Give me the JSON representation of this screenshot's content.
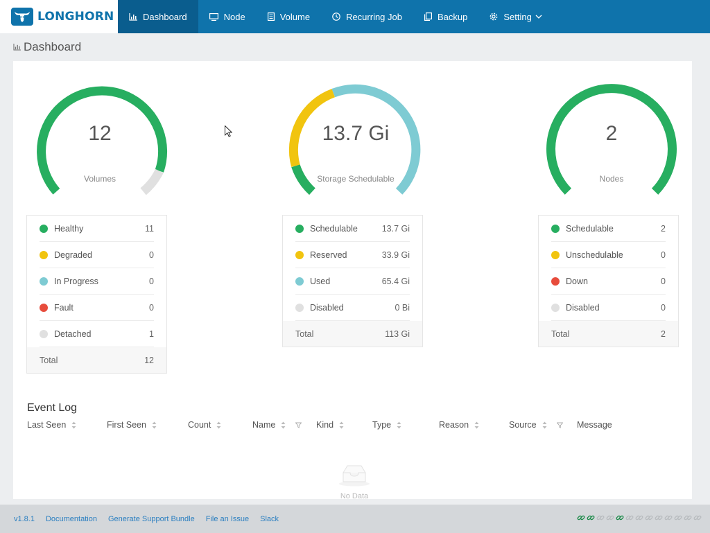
{
  "app": {
    "name": "LONGHORN"
  },
  "nav": {
    "items": [
      {
        "label": "Dashboard",
        "icon": "dashboard-icon",
        "active": true
      },
      {
        "label": "Node",
        "icon": "node-icon"
      },
      {
        "label": "Volume",
        "icon": "volume-icon"
      },
      {
        "label": "Recurring Job",
        "icon": "recurring-job-icon"
      },
      {
        "label": "Backup",
        "icon": "backup-icon"
      },
      {
        "label": "Setting",
        "icon": "gear-icon"
      }
    ]
  },
  "page": {
    "title": "Dashboard"
  },
  "colors": {
    "green": "#27ae60",
    "yellow": "#f1c40f",
    "blue": "#7ecbd3",
    "red": "#e74c3c",
    "gray": "#e0e0e0",
    "brand": "#0f73ab"
  },
  "volumes": {
    "value": "12",
    "label": "Volumes",
    "rows": [
      {
        "name": "Healthy",
        "value": "11",
        "color": "#27ae60"
      },
      {
        "name": "Degraded",
        "value": "0",
        "color": "#f1c40f"
      },
      {
        "name": "In Progress",
        "value": "0",
        "color": "#7ecbd3"
      },
      {
        "name": "Fault",
        "value": "0",
        "color": "#e74c3c"
      },
      {
        "name": "Detached",
        "value": "1",
        "color": "#e0e0e0"
      }
    ],
    "total_label": "Total",
    "total_value": "12"
  },
  "storage": {
    "value": "13.7 Gi",
    "label": "Storage Schedulable",
    "rows": [
      {
        "name": "Schedulable",
        "value": "13.7 Gi",
        "color": "#27ae60"
      },
      {
        "name": "Reserved",
        "value": "33.9 Gi",
        "color": "#f1c40f"
      },
      {
        "name": "Used",
        "value": "65.4 Gi",
        "color": "#7ecbd3"
      },
      {
        "name": "Disabled",
        "value": "0 Bi",
        "color": "#e0e0e0"
      }
    ],
    "total_label": "Total",
    "total_value": "113 Gi"
  },
  "nodes": {
    "value": "2",
    "label": "Nodes",
    "rows": [
      {
        "name": "Schedulable",
        "value": "2",
        "color": "#27ae60"
      },
      {
        "name": "Unschedulable",
        "value": "0",
        "color": "#f1c40f"
      },
      {
        "name": "Down",
        "value": "0",
        "color": "#e74c3c"
      },
      {
        "name": "Disabled",
        "value": "0",
        "color": "#e0e0e0"
      }
    ],
    "total_label": "Total",
    "total_value": "2"
  },
  "event_log": {
    "title": "Event Log",
    "columns": [
      "Last Seen",
      "First Seen",
      "Count",
      "Name",
      "Kind",
      "Type",
      "Reason",
      "Source",
      "Message"
    ],
    "empty_text": "No Data"
  },
  "footer": {
    "links": [
      "v1.8.1",
      "Documentation",
      "Generate Support Bundle",
      "File an Issue",
      "Slack"
    ]
  }
}
